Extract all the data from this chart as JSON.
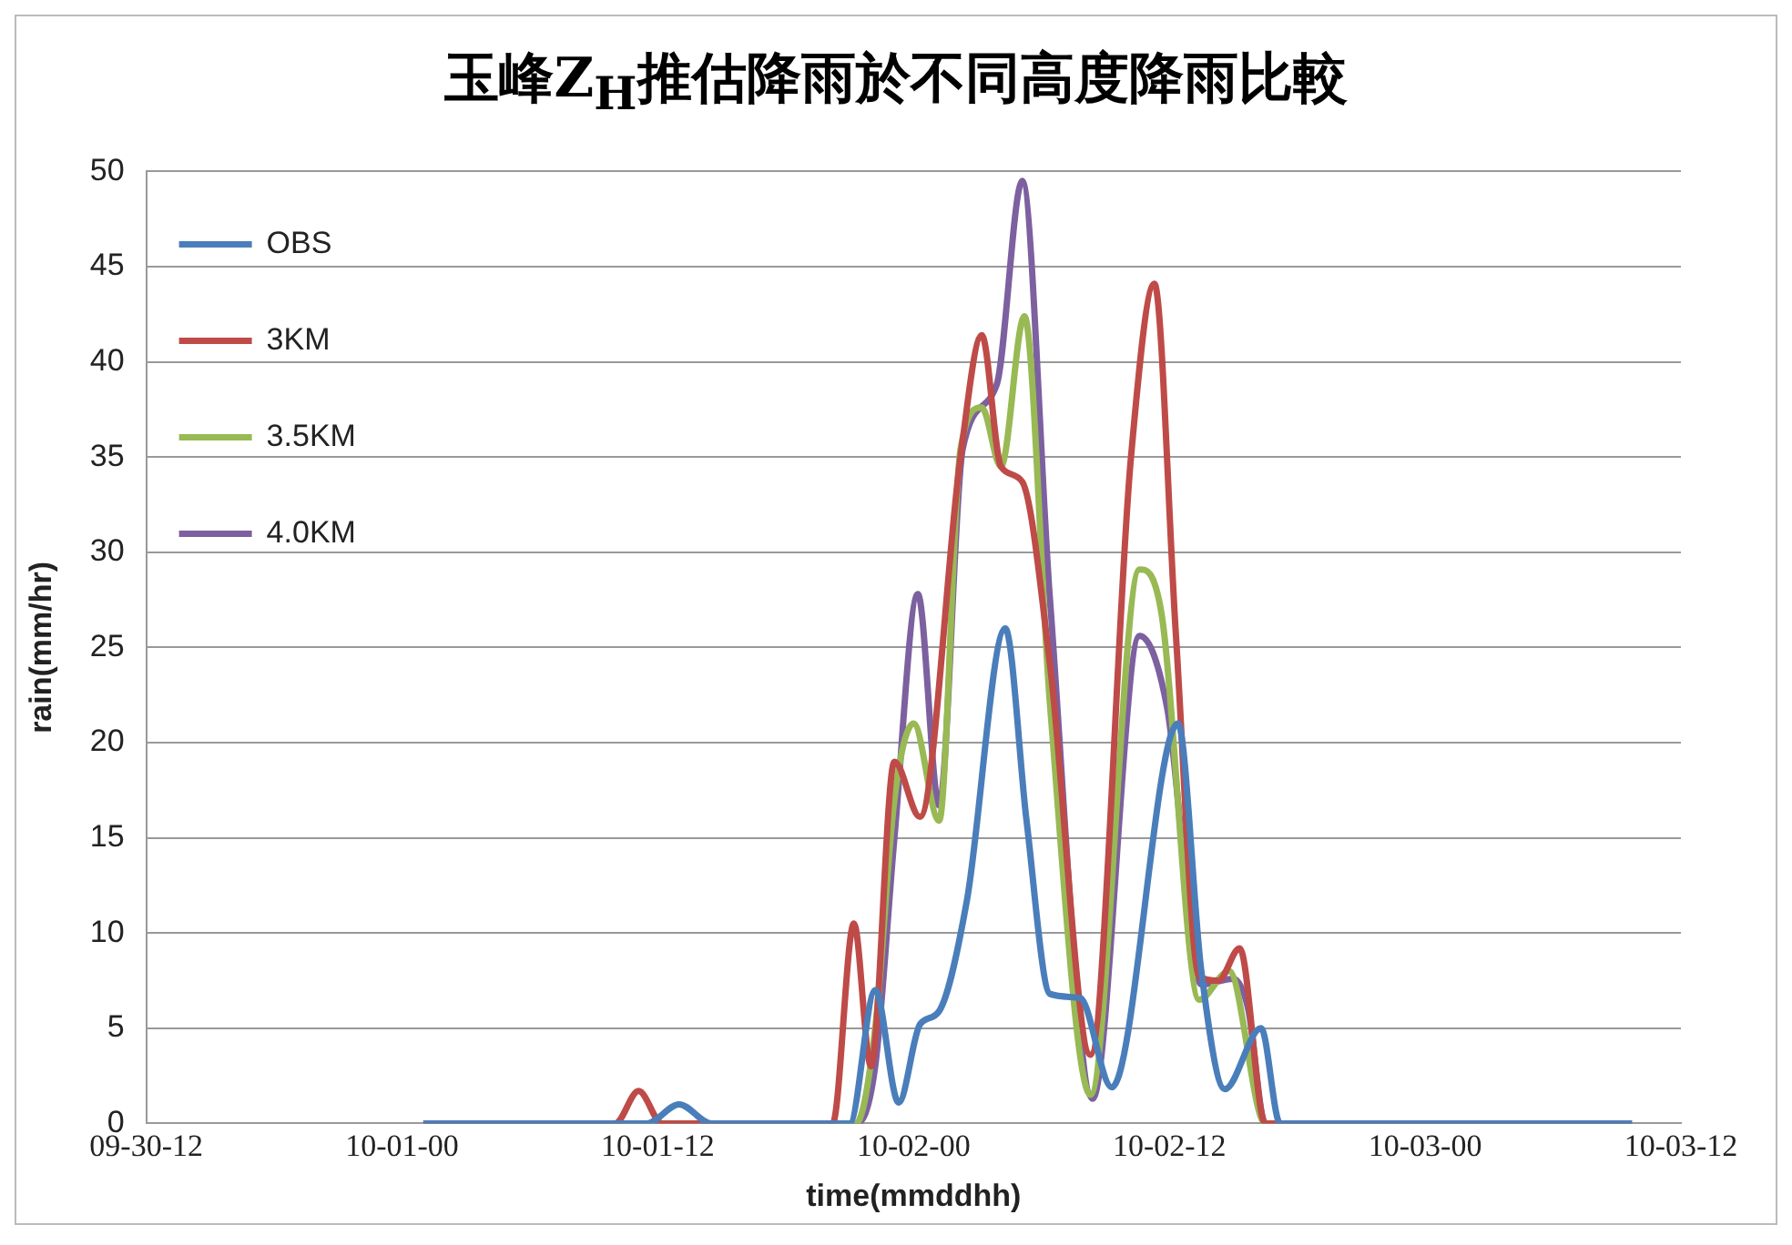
{
  "chart_data": {
    "type": "line",
    "title": "玉峰Z$_{H}$推估降雨於不同高度降雨比較",
    "xlabel": "time(mmddhh)",
    "ylabel": "rain(mm/hr)",
    "xlim": [
      "--09-30T12:00",
      "--10-03T12:00"
    ],
    "xticks": [
      {
        "value": "--09-30T12:00",
        "label": "09-30-12"
      },
      {
        "value": "--10-01T00:00",
        "label": "10-01-00"
      },
      {
        "value": "--10-01T12:00",
        "label": "10-01-12"
      },
      {
        "value": "--10-02T00:00",
        "label": "10-02-00"
      },
      {
        "value": "--10-02T12:00",
        "label": "10-02-12"
      },
      {
        "value": "--10-03T00:00",
        "label": "10-03-00"
      },
      {
        "value": "--10-03T12:00",
        "label": "10-03-12"
      }
    ],
    "ylim": [
      0,
      50
    ],
    "yticks": [
      0,
      5,
      10,
      15,
      20,
      25,
      30,
      35,
      40,
      45,
      50
    ],
    "grid": "y",
    "legend": "top left",
    "marker": "none",
    "line_style": "solid",
    "series": [
      {
        "name": "OBS",
        "color": "#4a7ebb",
        "x": [
          "--10-01T01:00",
          "--10-01T10:00",
          "--10-01T11:30",
          "--10-01T13:00",
          "--10-01T14:30",
          "--10-01T21:00",
          "--10-01T22:12",
          "--10-01T23:18",
          "--10-02T00:18",
          "--10-02T01:12",
          "--10-02T02:30",
          "--10-02T04:18",
          "--10-02T05:18",
          "--10-02T06:24",
          "--10-02T07:48",
          "--10-02T09:18",
          "--10-02T12:24",
          "--10-02T13:30",
          "--10-02T14:36",
          "--10-02T16:18",
          "--10-02T17:12",
          "--10-03T09:42"
        ],
        "values": [
          0,
          0,
          0,
          1.0,
          0,
          0,
          7.0,
          1.1,
          5.2,
          5.9,
          11.7,
          26,
          15.9,
          6.8,
          6.6,
          1.9,
          21,
          8,
          1.8,
          5.0,
          0,
          0
        ]
      },
      {
        "name": "3KM",
        "color": "#be4b48",
        "x": [
          "--10-01T01:00",
          "--10-01T10:00",
          "--10-01T11:06",
          "--10-01T12:12",
          "--10-01T20:12",
          "--10-01T21:12",
          "--10-01T22:00",
          "--10-01T23:06",
          "--10-02T00:18",
          "--10-02T02:12",
          "--10-02T03:12",
          "--10-02T04:06",
          "--10-02T05:06",
          "--10-02T06:24",
          "--10-02T08:18",
          "--10-02T10:12",
          "--10-02T11:18",
          "--10-02T12:18",
          "--10-02T13:24",
          "--10-02T14:18",
          "--10-02T15:18",
          "--10-02T16:30",
          "--10-03T09:42"
        ],
        "values": [
          0,
          0,
          1.7,
          0,
          0,
          10.5,
          3.0,
          19,
          16.1,
          35,
          41.4,
          34.5,
          33.7,
          24.1,
          3.6,
          35,
          44.1,
          25.8,
          7.7,
          7.5,
          9.2,
          0,
          0
        ]
      },
      {
        "name": "3.5KM",
        "color": "#98b954",
        "x": [
          "--10-01T01:00",
          "--10-01T21:18",
          "--10-01T22:12",
          "--10-01T23:06",
          "--10-02T00:00",
          "--10-02T01:12",
          "--10-02T02:12",
          "--10-02T03:12",
          "--10-02T04:06",
          "--10-02T05:12",
          "--10-02T06:24",
          "--10-02T08:18",
          "--10-02T10:36",
          "--10-02T11:36",
          "--10-02T13:24",
          "--10-02T14:48",
          "--10-02T16:30",
          "--10-03T09:42"
        ],
        "values": [
          0,
          0,
          5,
          17,
          21,
          15.9,
          35.4,
          37.6,
          34.5,
          42.4,
          22,
          1.5,
          29.1,
          27,
          6.5,
          8,
          0,
          0
        ]
      },
      {
        "name": "4.0KM",
        "color": "#7d60a0",
        "x": [
          "--10-01T01:00",
          "--10-01T21:18",
          "--10-01T22:12",
          "--10-01T23:06",
          "--10-02T00:12",
          "--10-02T01:12",
          "--10-02T02:18",
          "--10-02T03:54",
          "--10-02T05:06",
          "--10-02T06:24",
          "--10-02T08:24",
          "--10-02T10:36",
          "--10-02T11:54",
          "--10-02T13:30",
          "--10-02T15:00",
          "--10-02T15:42",
          "--10-02T16:30",
          "--10-03T09:42"
        ],
        "values": [
          0,
          0,
          3,
          15,
          27.8,
          16.7,
          35.4,
          38.8,
          49.5,
          27.5,
          1.3,
          25.6,
          21.8,
          7.3,
          7.6,
          6,
          0,
          0
        ]
      }
    ]
  }
}
